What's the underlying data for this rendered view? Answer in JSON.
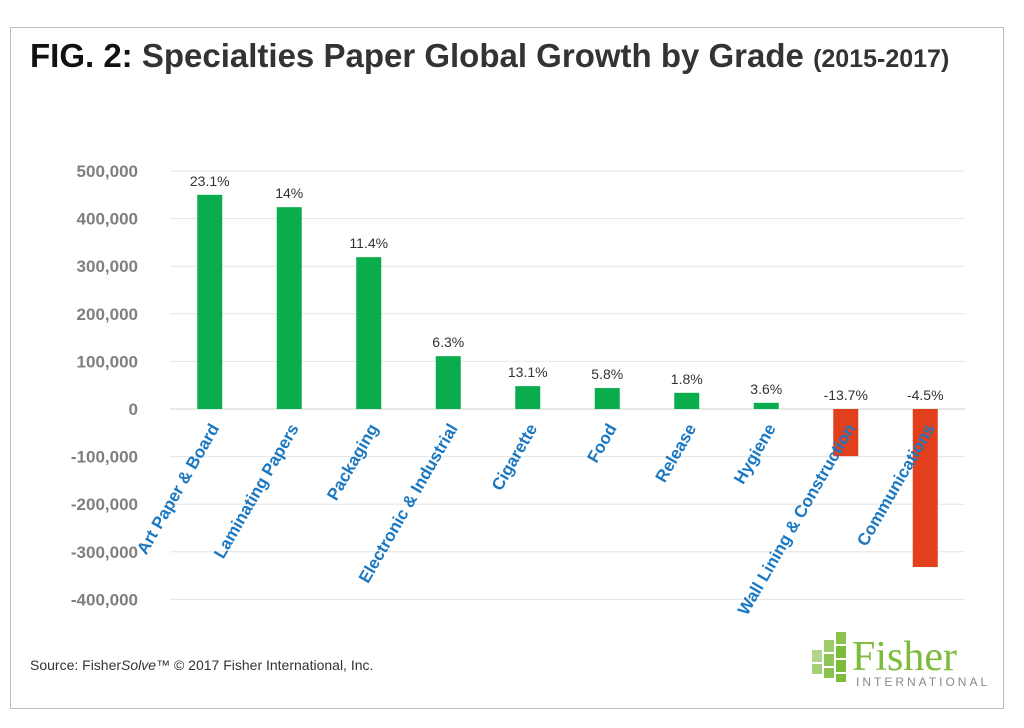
{
  "chart_data": {
    "type": "bar",
    "title_prefix": "FIG. 2:",
    "title": "Specialties Paper Global Growth by Grade",
    "title_years": "(2015-2017)",
    "categories": [
      "Art Paper & Board",
      "Laminating Papers",
      "Packaging",
      "Electronic & Industrial",
      "Cigarette",
      "Food",
      "Release",
      "Hygiene",
      "Wall Lining & Construction",
      "Communications"
    ],
    "values": [
      450000,
      424000,
      319000,
      111000,
      48000,
      44000,
      34000,
      13000,
      -99000,
      -332000
    ],
    "data_labels": [
      "23.1%",
      "14%",
      "11.4%",
      "6.3%",
      "13.1%",
      "5.8%",
      "1.8%",
      "3.6%",
      "-13.7%",
      "-4.5%"
    ],
    "ylim": [
      -400000,
      500000
    ],
    "yticks": [
      500000,
      400000,
      300000,
      200000,
      100000,
      0,
      -100000,
      -200000,
      -300000,
      -400000
    ],
    "ytick_labels": [
      "500,000",
      "400,000",
      "300,000",
      "200,000",
      "100,000",
      "0",
      "-100,000",
      "-200,000",
      "-300,000",
      "-400,000"
    ],
    "grid": true,
    "colors": {
      "positive": "#0aad4b",
      "negative": "#e2401c",
      "category_label": "#1a78c2",
      "tick": "#7f7f7f",
      "grid": "#e4e4e4"
    }
  },
  "source": {
    "prefix": "Source: Fisher",
    "italic": "Solve",
    "suffix": "™ © 2017 Fisher International,  Inc."
  },
  "logo": {
    "name": "Fisher",
    "sub": "INTERNATIONAL"
  }
}
